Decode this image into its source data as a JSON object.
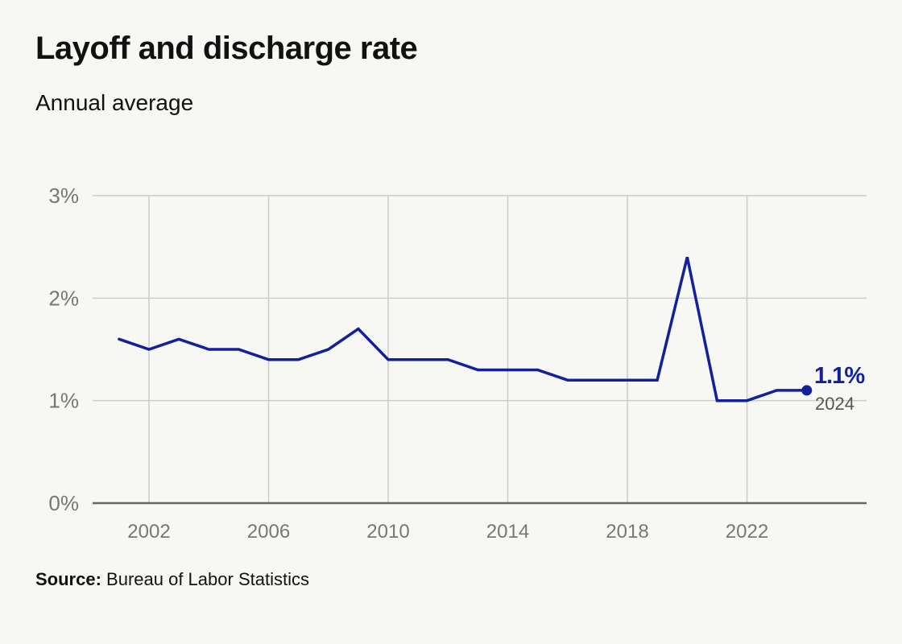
{
  "title": "Layoff and discharge rate",
  "subtitle": "Annual average",
  "source": {
    "label": "Source:",
    "text": "Bureau of Labor Statistics"
  },
  "colors": {
    "line": "#14209a",
    "grid": "#cccccc",
    "axis": "#666666",
    "tick_text": "#777777",
    "end_year": "#555555",
    "background": "#f7f7f4"
  },
  "chart_data": {
    "type": "line",
    "title": "Layoff and discharge rate",
    "subtitle": "Annual average",
    "xlabel": "",
    "ylabel": "",
    "x": [
      2001,
      2002,
      2003,
      2004,
      2005,
      2006,
      2007,
      2008,
      2009,
      2010,
      2011,
      2012,
      2013,
      2014,
      2015,
      2016,
      2017,
      2018,
      2019,
      2020,
      2021,
      2022,
      2023,
      2024
    ],
    "series": [
      {
        "values": [
          1.6,
          1.5,
          1.6,
          1.5,
          1.5,
          1.4,
          1.4,
          1.5,
          1.7,
          1.4,
          1.4,
          1.4,
          1.3,
          1.3,
          1.3,
          1.2,
          1.2,
          1.2,
          1.2,
          2.4,
          1.0,
          1.0,
          1.1,
          1.1
        ]
      }
    ],
    "x_ticks": [
      2002,
      2006,
      2010,
      2014,
      2018,
      2022
    ],
    "x_tick_labels": [
      "2002",
      "2006",
      "2010",
      "2014",
      "2018",
      "2022"
    ],
    "y_ticks": [
      0,
      1,
      2,
      3
    ],
    "y_tick_labels": [
      "0%",
      "1%",
      "2%",
      "3%"
    ],
    "ylim": [
      0,
      3
    ],
    "grid": true,
    "end_label": {
      "value": "1.1%",
      "year": "2024"
    }
  }
}
